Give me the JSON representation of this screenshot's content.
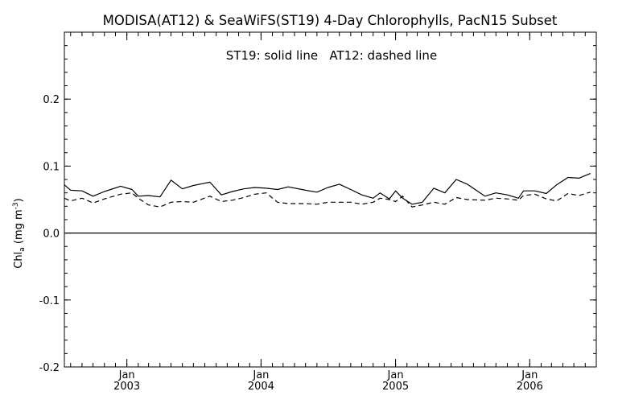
{
  "chart_data": {
    "type": "line",
    "title": "MODISA(AT12) & SeaWiFS(ST19) 4-Day Chlorophylls, PacN15 Subset",
    "annotation": "ST19: solid line   AT12: dashed line",
    "ylabel_main": "Chl",
    "ylabel_sub": "a",
    "ylabel_units": " (mg m",
    "ylabel_exp": "-3",
    "ylabel_close": ")",
    "ylim": [
      -0.2,
      0.3
    ],
    "yticks": [
      -0.2,
      -0.1,
      0.0,
      0.1,
      0.2
    ],
    "ytick_labels": [
      "-0.2",
      "-0.1",
      "0.0",
      "0.1",
      "0.2"
    ],
    "xlim": [
      "2002-07-15",
      "2006-07-01"
    ],
    "xticks": [
      {
        "month": "Jan",
        "year": "2003",
        "date": "2003-01-01"
      },
      {
        "month": "Jan",
        "year": "2004",
        "date": "2004-01-01"
      },
      {
        "month": "Jan",
        "year": "2005",
        "date": "2005-01-01"
      },
      {
        "month": "Jan",
        "year": "2006",
        "date": "2006-01-01"
      }
    ],
    "zero_line": 0.0,
    "grid": false,
    "series": [
      {
        "name": "ST19",
        "style": "solid",
        "color": "#000000",
        "points": [
          [
            "2002-07-15",
            0.072
          ],
          [
            "2002-08-01",
            0.064
          ],
          [
            "2002-09-01",
            0.063
          ],
          [
            "2002-10-01",
            0.055
          ],
          [
            "2002-11-01",
            0.062
          ],
          [
            "2002-12-15",
            0.07
          ],
          [
            "2003-01-15",
            0.065
          ],
          [
            "2003-02-01",
            0.055
          ],
          [
            "2003-03-01",
            0.056
          ],
          [
            "2003-04-01",
            0.054
          ],
          [
            "2003-05-01",
            0.079
          ],
          [
            "2003-06-01",
            0.066
          ],
          [
            "2003-07-01",
            0.071
          ],
          [
            "2003-08-15",
            0.076
          ],
          [
            "2003-09-15",
            0.057
          ],
          [
            "2003-10-15",
            0.062
          ],
          [
            "2003-11-15",
            0.066
          ],
          [
            "2003-12-15",
            0.068
          ],
          [
            "2004-01-15",
            0.067
          ],
          [
            "2004-02-15",
            0.065
          ],
          [
            "2004-03-15",
            0.069
          ],
          [
            "2004-05-01",
            0.064
          ],
          [
            "2004-06-01",
            0.061
          ],
          [
            "2004-07-01",
            0.068
          ],
          [
            "2004-08-01",
            0.073
          ],
          [
            "2004-09-01",
            0.065
          ],
          [
            "2004-10-01",
            0.057
          ],
          [
            "2004-11-01",
            0.052
          ],
          [
            "2004-11-20",
            0.06
          ],
          [
            "2004-12-15",
            0.051
          ],
          [
            "2005-01-01",
            0.063
          ],
          [
            "2005-01-20",
            0.052
          ],
          [
            "2005-02-15",
            0.043
          ],
          [
            "2005-03-15",
            0.046
          ],
          [
            "2005-04-15",
            0.067
          ],
          [
            "2005-05-15",
            0.06
          ],
          [
            "2005-06-15",
            0.08
          ],
          [
            "2005-07-15",
            0.073
          ],
          [
            "2005-09-01",
            0.055
          ],
          [
            "2005-10-01",
            0.06
          ],
          [
            "2005-11-01",
            0.057
          ],
          [
            "2005-12-01",
            0.052
          ],
          [
            "2005-12-15",
            0.063
          ],
          [
            "2006-01-15",
            0.063
          ],
          [
            "2006-02-15",
            0.059
          ],
          [
            "2006-03-15",
            0.072
          ],
          [
            "2006-04-15",
            0.083
          ],
          [
            "2006-05-15",
            0.082
          ],
          [
            "2006-06-15",
            0.089
          ]
        ]
      },
      {
        "name": "AT12",
        "style": "dashed",
        "color": "#000000",
        "points": [
          [
            "2002-07-15",
            0.052
          ],
          [
            "2002-08-01",
            0.048
          ],
          [
            "2002-09-01",
            0.052
          ],
          [
            "2002-10-01",
            0.045
          ],
          [
            "2002-11-01",
            0.051
          ],
          [
            "2002-12-15",
            0.058
          ],
          [
            "2003-01-15",
            0.06
          ],
          [
            "2003-02-01",
            0.052
          ],
          [
            "2003-03-01",
            0.042
          ],
          [
            "2003-04-01",
            0.039
          ],
          [
            "2003-05-01",
            0.046
          ],
          [
            "2003-06-01",
            0.047
          ],
          [
            "2003-07-01",
            0.046
          ],
          [
            "2003-08-15",
            0.055
          ],
          [
            "2003-09-15",
            0.047
          ],
          [
            "2003-10-15",
            0.049
          ],
          [
            "2003-11-15",
            0.053
          ],
          [
            "2003-12-15",
            0.058
          ],
          [
            "2004-01-15",
            0.06
          ],
          [
            "2004-02-15",
            0.046
          ],
          [
            "2004-03-15",
            0.044
          ],
          [
            "2004-05-01",
            0.044
          ],
          [
            "2004-06-01",
            0.043
          ],
          [
            "2004-07-01",
            0.046
          ],
          [
            "2004-08-01",
            0.046
          ],
          [
            "2004-09-01",
            0.046
          ],
          [
            "2004-10-01",
            0.043
          ],
          [
            "2004-11-01",
            0.046
          ],
          [
            "2004-11-20",
            0.052
          ],
          [
            "2004-12-15",
            0.05
          ],
          [
            "2005-01-01",
            0.047
          ],
          [
            "2005-01-20",
            0.055
          ],
          [
            "2005-02-15",
            0.039
          ],
          [
            "2005-03-15",
            0.042
          ],
          [
            "2005-04-15",
            0.046
          ],
          [
            "2005-05-15",
            0.043
          ],
          [
            "2005-06-15",
            0.053
          ],
          [
            "2005-07-15",
            0.05
          ],
          [
            "2005-09-01",
            0.049
          ],
          [
            "2005-10-01",
            0.052
          ],
          [
            "2005-11-01",
            0.051
          ],
          [
            "2005-12-01",
            0.049
          ],
          [
            "2005-12-15",
            0.056
          ],
          [
            "2006-01-15",
            0.058
          ],
          [
            "2006-02-15",
            0.051
          ],
          [
            "2006-03-15",
            0.048
          ],
          [
            "2006-04-15",
            0.059
          ],
          [
            "2006-05-15",
            0.056
          ],
          [
            "2006-06-15",
            0.061
          ]
        ]
      }
    ]
  }
}
